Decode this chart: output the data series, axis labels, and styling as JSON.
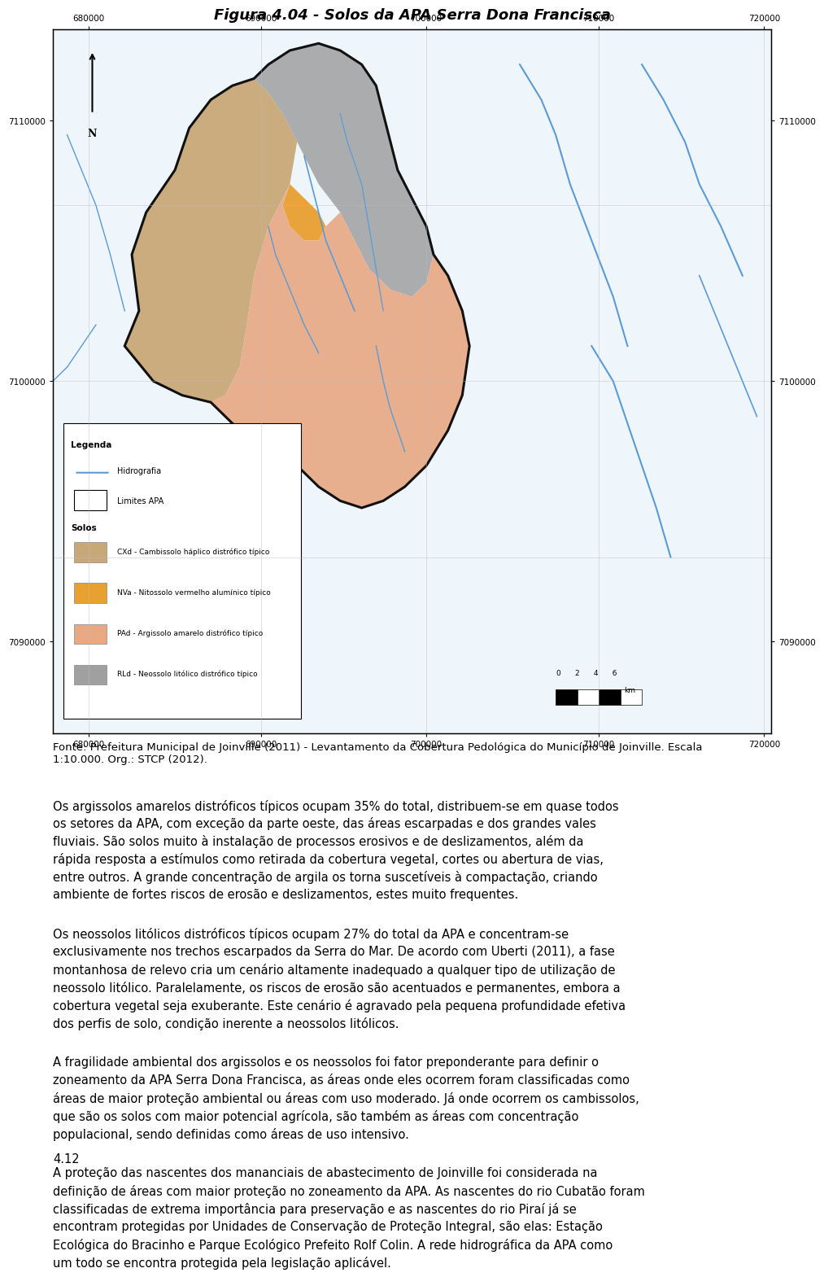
{
  "title": "Figura 4.04 - Solos da APA Serra Dona Francisca",
  "title_fontsize": 13,
  "title_style": "italic",
  "title_weight": "bold",
  "fonte_text": "Fonte: Prefeitura Municipal de Joinville (2011) - Levantamento da Cobertura Pedológica do Município de Joinville. Escala\n1:10.000. Org.: STCP (2012).",
  "paragraphs": [
    "Os argissolos amarelos distróficos típicos ocupam 35% do total, distribuem-se em quase todos os setores da APA, com exceção da parte oeste, das áreas escarpadas e dos grandes vales fluviais. São solos muito à instalação de processos erosivos e de deslizamentos, além da rápida resposta a estímulos como retirada da cobertura vegetal, cortes ou abertura de vias, entre outros. A grande concentração de argila os torna suscetíveis à compactação, criando ambiente de fortes riscos de erosão e deslizamentos, estes muito frequentes.",
    "Os neossolos litólicos distróficos típicos ocupam 27% do total da APA e concentram-se exclusivamente nos trechos escarpados da Serra do Mar. De acordo com Uberti (2011), a fase montanhosa de relevo cria um cenário altamente inadequado a qualquer tipo de utilização de neossolo litólico. Paralelamente, os riscos de erosão são acentuados e permanentes, embora a cobertura vegetal seja exuberante. Este cenário é agravado pela pequena profundidade efetiva dos perfis de solo, condição inerente a neossolos litólicos.",
    "A fragilidade ambiental dos argissolos e os neossolos foi fator preponderante para definir o zoneamento da APA Serra Dona Francisca, as áreas onde eles ocorrem foram classificadas como áreas de maior proteção ambiental ou áreas com uso moderado. Já onde ocorrem os cambissolos, que são os solos com maior potencial agrícola, são também as áreas com concentração populacional, sendo definidas como áreas de uso intensivo.",
    "A proteção das nascentes dos mananciais de abastecimento de Joinville foi considerada na definição de áreas com maior proteção no zoneamento da APA. As nascentes do rio Cubatão foram classificadas de extrema importância para preservação e as nascentes do rio Piraí já se encontram protegidas por Unidades de Conservação de Proteção Integral, são elas: Estação Ecológica do Bracinho e Parque Ecológico Prefeito Rolf Colin. A rede hidrográfica da APA como um todo se encontra protegida pela legislação aplicável."
  ],
  "page_number": "4.12",
  "text_fontsize": 10.5,
  "fonte_fontsize": 9.5,
  "bg_color": "#ffffff",
  "text_color": "#000000",
  "river_color": "#5B9BD5",
  "map_bg": "#f0f0f0",
  "cxd_color": "#C8A878",
  "nva_color": "#E8A030",
  "pad_color": "#E8A882",
  "rld_color": "#A0A0A0",
  "xtick_labels": [
    "680000",
    "690000",
    "700000",
    "710000",
    "720000"
  ],
  "ytick_labels": [
    "7090000",
    "7100000",
    "7110000"
  ],
  "soil_labels": [
    "CXd - Cambissolo háplico distrófico típico",
    "NVa - Nitossolo vermelho alumínico típico",
    "PAd - Argissolo amarelo distrófico típico",
    "RLd - Neossolo litólico distrófico típico"
  ]
}
